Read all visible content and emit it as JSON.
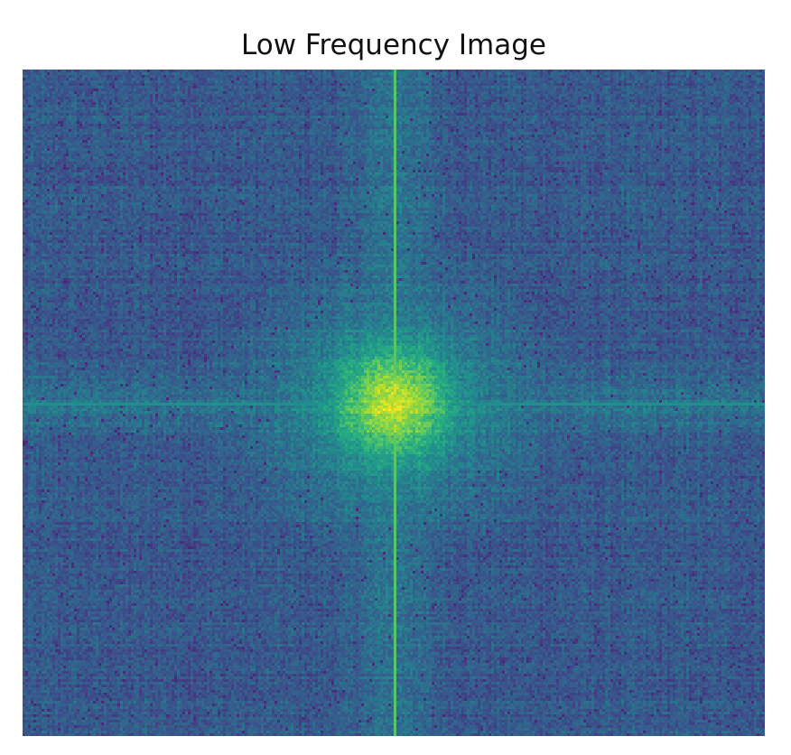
{
  "title": "Low Frequency Image",
  "image": {
    "description_colormap": "viridis",
    "colors": {
      "background": "#3f4488",
      "center_peak": "#f5e61e",
      "axis_line": "#3ad47a"
    }
  }
}
